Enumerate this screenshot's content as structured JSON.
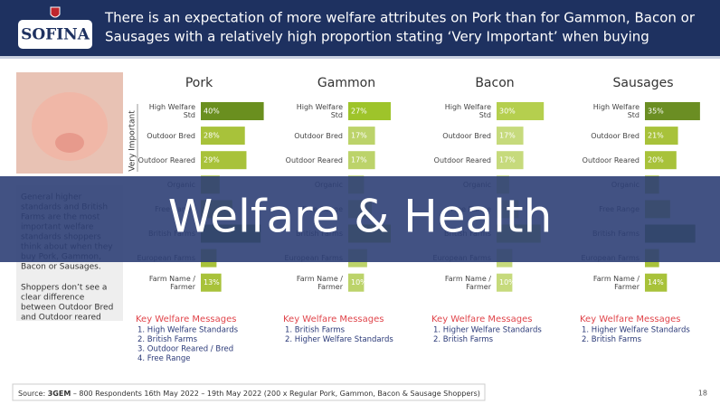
{
  "header": {
    "logo": "SOFINA",
    "title_lines": [
      "There is an expectation of more welfare attributes on Pork than for Gammon, Bacon or",
      "Sausages with a relatively high proportion stating ‘Very Important’ when buying"
    ]
  },
  "sidebar": {
    "paragraphs": [
      [
        "General higher",
        "standards and British",
        "Farms are the most",
        "important welfare",
        "standards shoppers",
        "think about when they",
        "buy Pork, Gammon,",
        "Bacon or Sausages."
      ],
      [
        "Shoppers don’t see a",
        "clear difference",
        "between Outdoor Bred",
        "and Outdoor reared"
      ]
    ]
  },
  "banner": "Welfare & Health",
  "chart_data": [
    {
      "type": "bar",
      "title": "Pork",
      "annotation": "Very Important",
      "categories": [
        "High Welfare Std",
        "Outdoor Bred",
        "Outdoor Reared",
        "Organic",
        "Free Range",
        "British Farms",
        "European Farms",
        "Farm Name / Farmer"
      ],
      "values": [
        40,
        28,
        29,
        12,
        20,
        38,
        10,
        13
      ],
      "value_labels": [
        "40%",
        "28%",
        "29%",
        null,
        null,
        null,
        null,
        "13%"
      ],
      "colors": [
        "#6a8f1f",
        "#a8c23a",
        "#a8c23a",
        "#a8c23a",
        "#a8c23a",
        "#6a8f1f",
        "#a8c23a",
        "#a8c23a"
      ],
      "xlim": [
        0,
        50
      ],
      "key_title": "Key Welfare Messages",
      "key_items": [
        "1.  High Welfare Standards",
        "2.  British Farms",
        "3.  Outdoor Reared / Bred",
        "4.  Free Range"
      ]
    },
    {
      "type": "bar",
      "title": "Gammon",
      "categories": [
        "High Welfare Std",
        "Outdoor Bred",
        "Outdoor Reared",
        "Organic",
        "Free Range",
        "British Farms",
        "European Farms",
        "Farm Name / Farmer"
      ],
      "values": [
        27,
        17,
        17,
        10,
        15,
        27,
        12,
        10
      ],
      "value_labels": [
        "27%",
        "17%",
        "17%",
        null,
        null,
        null,
        null,
        "10%"
      ],
      "colors": [
        "#9ec42a",
        "#bcd36a",
        "#bcd36a",
        "#bcd36a",
        "#bcd36a",
        "#9ec42a",
        "#bcd36a",
        "#bcd36a"
      ],
      "xlim": [
        0,
        50
      ],
      "key_title": "Key Welfare Messages",
      "key_items": [
        "1.  British Farms",
        "2.  Higher Welfare Standards"
      ]
    },
    {
      "type": "bar",
      "title": "Bacon",
      "categories": [
        "High Welfare Std",
        "Outdoor Bred",
        "Outdoor Reared",
        "Organic",
        "Free Range",
        "British Farms",
        "European Farms",
        "Farm Name / Farmer"
      ],
      "values": [
        30,
        17,
        17,
        8,
        14,
        28,
        10,
        10
      ],
      "value_labels": [
        "30%",
        "17%",
        "17%",
        null,
        null,
        null,
        null,
        "10%"
      ],
      "colors": [
        "#b5cf4e",
        "#c6da7c",
        "#c6da7c",
        "#c6da7c",
        "#c6da7c",
        "#b5cf4e",
        "#c6da7c",
        "#c6da7c"
      ],
      "xlim": [
        0,
        50
      ],
      "key_title": "Key Welfare Messages",
      "key_items": [
        "1.  Higher Welfare Standards",
        "2.  British Farms"
      ]
    },
    {
      "type": "bar",
      "title": "Sausages",
      "categories": [
        "High Welfare Std",
        "Outdoor Bred",
        "Outdoor Reared",
        "Organic",
        "Free Range",
        "British Farms",
        "European Farms",
        "Farm Name / Farmer"
      ],
      "values": [
        35,
        21,
        20,
        9,
        16,
        32,
        9,
        14
      ],
      "value_labels": [
        "35%",
        "21%",
        "20%",
        null,
        null,
        null,
        null,
        "14%"
      ],
      "colors": [
        "#6b8e23",
        "#a8c23a",
        "#a8c23a",
        "#a8c23a",
        "#a8c23a",
        "#6b8e23",
        "#a8c23a",
        "#a8c23a"
      ],
      "xlim": [
        0,
        50
      ],
      "key_title": "Key Welfare Messages",
      "key_items": [
        "1.  Higher Welfare Standards",
        "2.  British Farms"
      ]
    }
  ],
  "footer": {
    "source_label": "Source:",
    "source_brand": "3GEM",
    "source_text": "– 800 Respondents 16th May 2022 – 19th May 2022 (200 x Regular Pork, Gammon, Bacon & Sausage Shoppers)",
    "page": "18"
  }
}
